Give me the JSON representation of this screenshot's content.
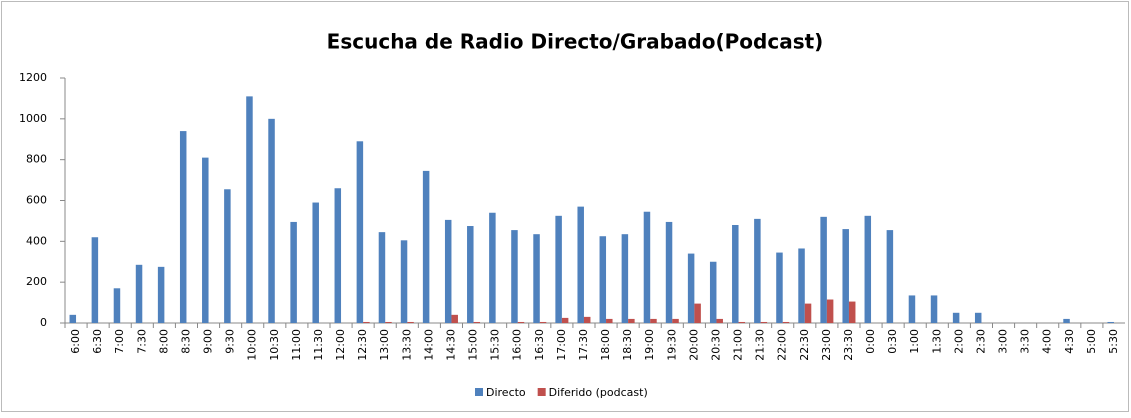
{
  "chart_data": {
    "type": "bar",
    "title": "Escucha de Radio Directo/Grabado(Podcast)",
    "categories": [
      "6:00",
      "6:30",
      "7:00",
      "7:30",
      "8:00",
      "8:30",
      "9:00",
      "9:30",
      "10:00",
      "10:30",
      "11:00",
      "11:30",
      "12:00",
      "12:30",
      "13:00",
      "13:30",
      "14:00",
      "14:30",
      "15:00",
      "15:30",
      "16:00",
      "16:30",
      "17:00",
      "17:30",
      "18:00",
      "18:30",
      "19:00",
      "19:30",
      "20:00",
      "20:30",
      "21:00",
      "21:30",
      "22:00",
      "22:30",
      "23:00",
      "23:30",
      "0:00",
      "0:30",
      "1:00",
      "1:30",
      "2:00",
      "2:30",
      "3:00",
      "3:30",
      "4:00",
      "4:30",
      "5:00",
      "5:30"
    ],
    "series": [
      {
        "name": "Directo",
        "color": "#4f81bd",
        "values": [
          40,
          420,
          170,
          285,
          275,
          940,
          810,
          655,
          1110,
          1000,
          495,
          590,
          660,
          890,
          445,
          405,
          745,
          505,
          475,
          540,
          455,
          435,
          525,
          570,
          425,
          435,
          545,
          495,
          340,
          300,
          480,
          510,
          345,
          365,
          520,
          460,
          525,
          455,
          135,
          135,
          50,
          50,
          0,
          0,
          0,
          20,
          0,
          5
        ]
      },
      {
        "name": "Diferido (podcast)",
        "color": "#c0504d",
        "values": [
          0,
          0,
          0,
          0,
          0,
          0,
          0,
          0,
          0,
          0,
          0,
          0,
          0,
          5,
          5,
          5,
          0,
          40,
          5,
          0,
          5,
          5,
          25,
          30,
          20,
          20,
          20,
          20,
          95,
          20,
          5,
          5,
          5,
          95,
          115,
          105,
          0,
          0,
          0,
          0,
          0,
          0,
          0,
          0,
          0,
          0,
          0,
          0
        ]
      }
    ],
    "ylim": [
      0,
      1200
    ],
    "yticks": [
      0,
      200,
      400,
      600,
      800,
      1000,
      1200
    ],
    "legend": "bottom"
  }
}
